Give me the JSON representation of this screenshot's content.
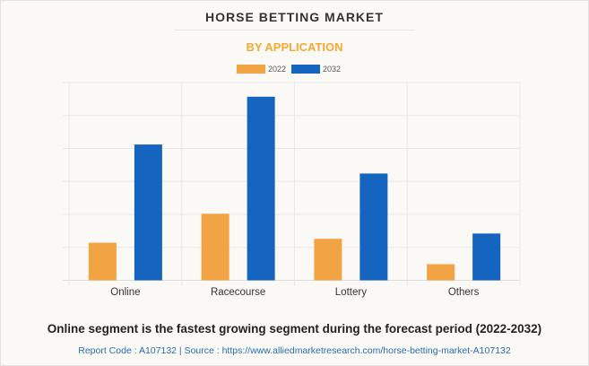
{
  "chart_data": {
    "type": "bar",
    "title": "HORSE BETTING MARKET",
    "subtitle": "BY APPLICATION",
    "categories": [
      "Online",
      "Racecourse",
      "Lottery",
      "Others"
    ],
    "series": [
      {
        "name": "2022",
        "color": "#f2a444",
        "values": [
          1.14,
          2.02,
          1.26,
          0.49
        ]
      },
      {
        "name": "2032",
        "color": "#1565c0",
        "values": [
          4.12,
          5.57,
          3.24,
          1.42
        ]
      }
    ],
    "xlabel": "",
    "ylabel": "",
    "ylim": [
      0,
      6
    ],
    "grid": true,
    "legend": "top-center"
  },
  "caption": "Online segment is the fastest growing segment during the forecast period (2022-2032)",
  "source": "Report Code : A107132  |  Source : https://www.alliedmarketresearch.com/horse-betting-market-A107132"
}
